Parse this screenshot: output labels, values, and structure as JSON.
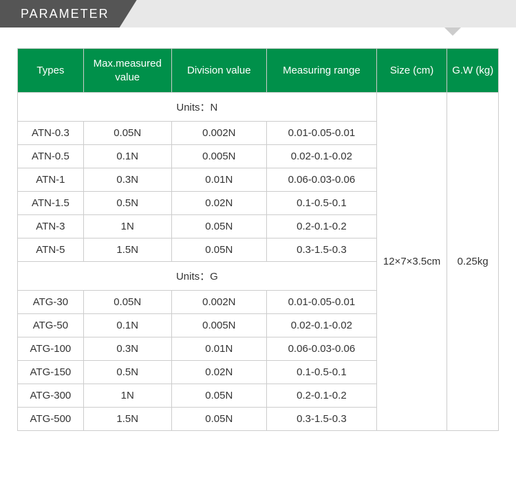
{
  "header": {
    "title": "PARAMETER"
  },
  "table": {
    "columns": {
      "types": "Types",
      "max": "Max.measured value",
      "division": "Division value",
      "range": "Measuring range",
      "size": "Size (cm)",
      "gw": "G.W (kg)"
    },
    "units_n": "Units：N",
    "units_g": "Units：G",
    "rows_n": [
      {
        "type": "ATN-0.3",
        "max": "0.05N",
        "div": "0.002N",
        "range": "0.01-0.05-0.01"
      },
      {
        "type": "ATN-0.5",
        "max": "0.1N",
        "div": "0.005N",
        "range": "0.02-0.1-0.02"
      },
      {
        "type": "ATN-1",
        "max": "0.3N",
        "div": "0.01N",
        "range": "0.06-0.03-0.06"
      },
      {
        "type": "ATN-1.5",
        "max": "0.5N",
        "div": "0.02N",
        "range": "0.1-0.5-0.1"
      },
      {
        "type": "ATN-3",
        "max": "1N",
        "div": "0.05N",
        "range": "0.2-0.1-0.2"
      },
      {
        "type": "ATN-5",
        "max": "1.5N",
        "div": "0.05N",
        "range": "0.3-1.5-0.3"
      }
    ],
    "rows_g": [
      {
        "type": "ATG-30",
        "max": "0.05N",
        "div": "0.002N",
        "range": "0.01-0.05-0.01"
      },
      {
        "type": "ATG-50",
        "max": "0.1N",
        "div": "0.005N",
        "range": "0.02-0.1-0.02"
      },
      {
        "type": "ATG-100",
        "max": "0.3N",
        "div": "0.01N",
        "range": "0.06-0.03-0.06"
      },
      {
        "type": "ATG-150",
        "max": "0.5N",
        "div": "0.02N",
        "range": "0.1-0.5-0.1"
      },
      {
        "type": "ATG-300",
        "max": "1N",
        "div": "0.05N",
        "range": "0.2-0.1-0.2"
      },
      {
        "type": "ATG-500",
        "max": "1.5N",
        "div": "0.05N",
        "range": "0.3-1.5-0.3"
      }
    ],
    "size": "12×7×3.5cm",
    "gw": "0.25kg"
  },
  "colors": {
    "header_green": "#00904a",
    "tab_gray": "#555555",
    "bar_bg": "#e8e8e8",
    "border": "#cccccc",
    "text": "#333333"
  }
}
